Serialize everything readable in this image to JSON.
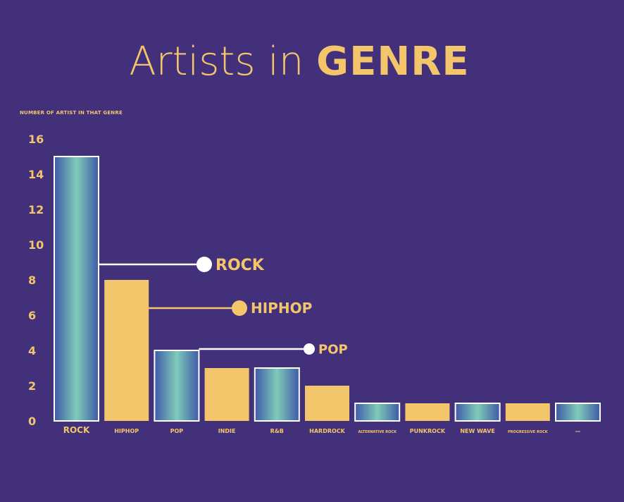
{
  "title_part1": "Artists in",
  "title_part2": "GENRE",
  "chart_data": {
    "type": "bar",
    "ylabel": "NUMBER OF ARTIST IN THAT GENRE",
    "xlabel": "",
    "ylim": [
      0,
      16
    ],
    "yticks": [
      0,
      2,
      4,
      6,
      8,
      10,
      12,
      14,
      16
    ],
    "categories": [
      "ROCK",
      "HIPHOP",
      "POP",
      "INDIE",
      "R&B",
      "HARDROCK",
      "ALTERNATIVE ROCK",
      "PUNKROCK",
      "NEW WAVE",
      "PROGRESSIVE ROCK",
      "—"
    ],
    "values": [
      15,
      8,
      4,
      3,
      3,
      2,
      1,
      1,
      1,
      1,
      1
    ],
    "annotations": [
      {
        "label": "ROCK",
        "target": 0
      },
      {
        "label": "HIPHOP",
        "target": 1
      },
      {
        "label": "POP",
        "target": 2
      }
    ],
    "colors": {
      "background": "#43307a",
      "accent": "#f4c66b",
      "bar_solid": "#f4c66b",
      "bar_gradient_edge": "#3f5aa8",
      "bar_gradient_center": "#7fcbb8",
      "bar_border": "#ffffff"
    }
  }
}
